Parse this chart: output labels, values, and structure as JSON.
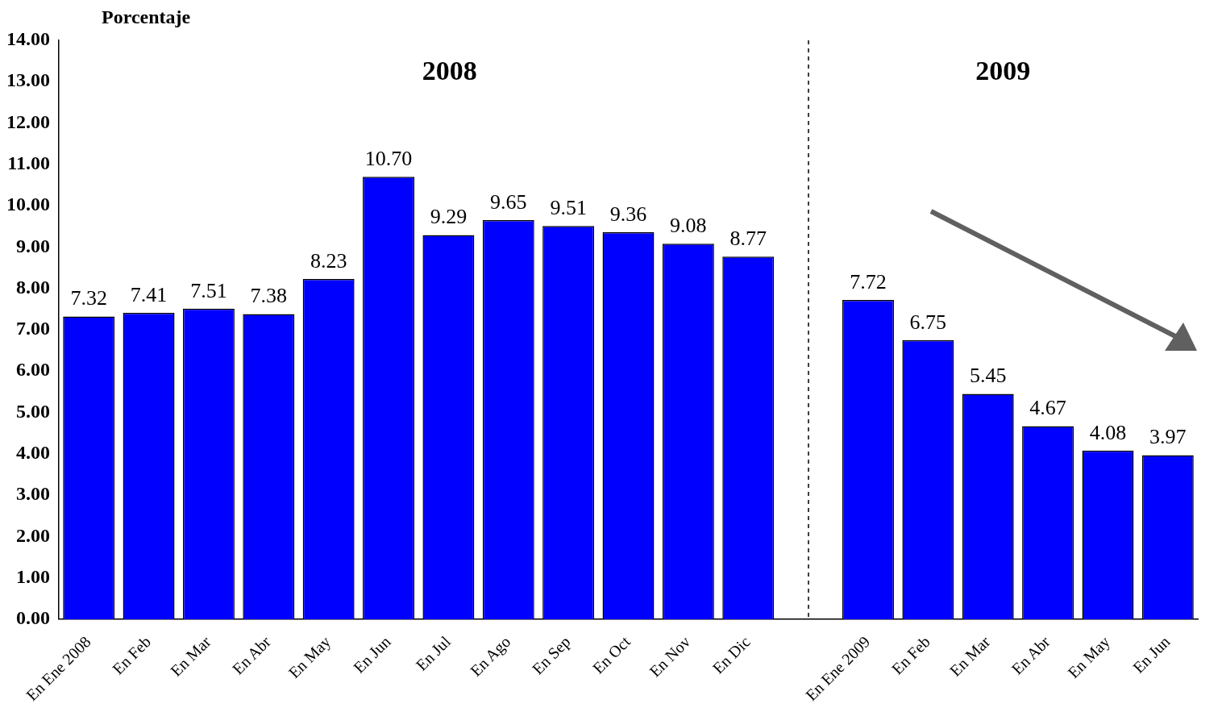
{
  "chart_data": {
    "type": "bar",
    "ylabel": "Porcentaje",
    "categories": [
      "En Ene 2008",
      "En Feb",
      "En Mar",
      "En Abr",
      "En May",
      "En Jun",
      "En Jul",
      "En Ago",
      "En Sep",
      "En Oct",
      "En Nov",
      "En Dic",
      null,
      "En Ene 2009",
      "En Feb",
      "En Mar",
      "En Abr",
      "En May",
      "En Jun"
    ],
    "values": [
      7.32,
      7.41,
      7.51,
      7.38,
      8.23,
      10.7,
      9.29,
      9.65,
      9.51,
      9.36,
      9.08,
      8.77,
      null,
      7.72,
      6.75,
      5.45,
      4.67,
      4.08,
      3.97
    ],
    "value_labels": [
      "7.32",
      "7.41",
      "7.51",
      "7.38",
      "8.23",
      "10.70",
      "9.29",
      "9.65",
      "9.51",
      "9.36",
      "9.08",
      "8.77",
      null,
      "7.72",
      "6.75",
      "5.45",
      "4.67",
      "4.08",
      "3.97"
    ],
    "color": "#0000ff",
    "ylim": [
      0,
      14
    ],
    "yticks": [
      {
        "value": 0,
        "label": "0.00"
      },
      {
        "value": 1,
        "label": "1.00"
      },
      {
        "value": 2,
        "label": "2.00"
      },
      {
        "value": 3,
        "label": "3.00"
      },
      {
        "value": 4,
        "label": "4.00"
      },
      {
        "value": 5,
        "label": "5.00"
      },
      {
        "value": 6,
        "label": "6.00"
      },
      {
        "value": 7,
        "label": "7.00"
      },
      {
        "value": 8,
        "label": "8.00"
      },
      {
        "value": 9,
        "label": "9.00"
      },
      {
        "value": 10,
        "label": "10.00"
      },
      {
        "value": 11,
        "label": "11.00"
      },
      {
        "value": 12,
        "label": "12.00"
      },
      {
        "value": 13,
        "label": "13.00"
      },
      {
        "value": 14,
        "label": "14.00"
      }
    ],
    "annotations": [
      "2008",
      "2009"
    ],
    "grid": false,
    "legend": false
  }
}
